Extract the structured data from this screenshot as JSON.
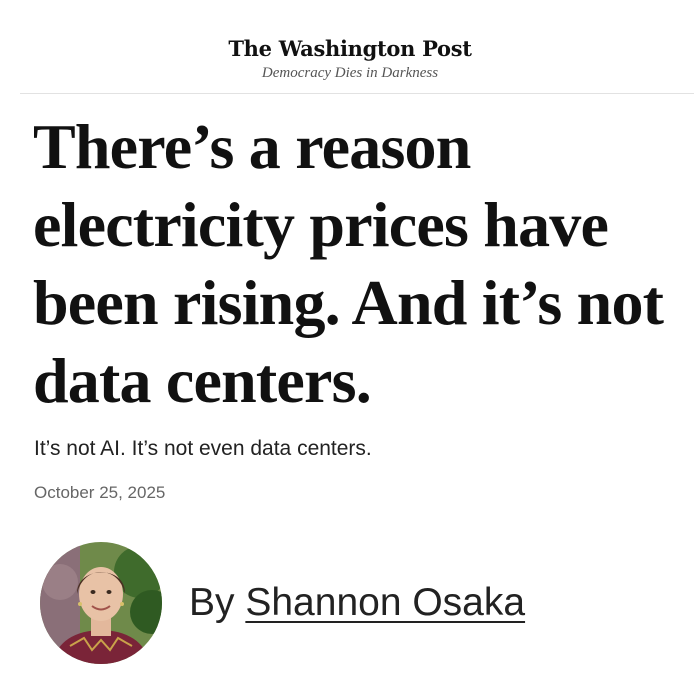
{
  "masthead": {
    "logo": "The Washington Post",
    "tagline": "Democracy Dies in Darkness"
  },
  "article": {
    "headline": "There’s a reason electricity prices have been rising. And it’s not data centers.",
    "dek": "It’s not AI. It’s not even data centers.",
    "date": "October 25, 2025",
    "byline_prefix": "By",
    "author": "Shannon Osaka"
  },
  "icons": {
    "avatar": "author-photo"
  }
}
